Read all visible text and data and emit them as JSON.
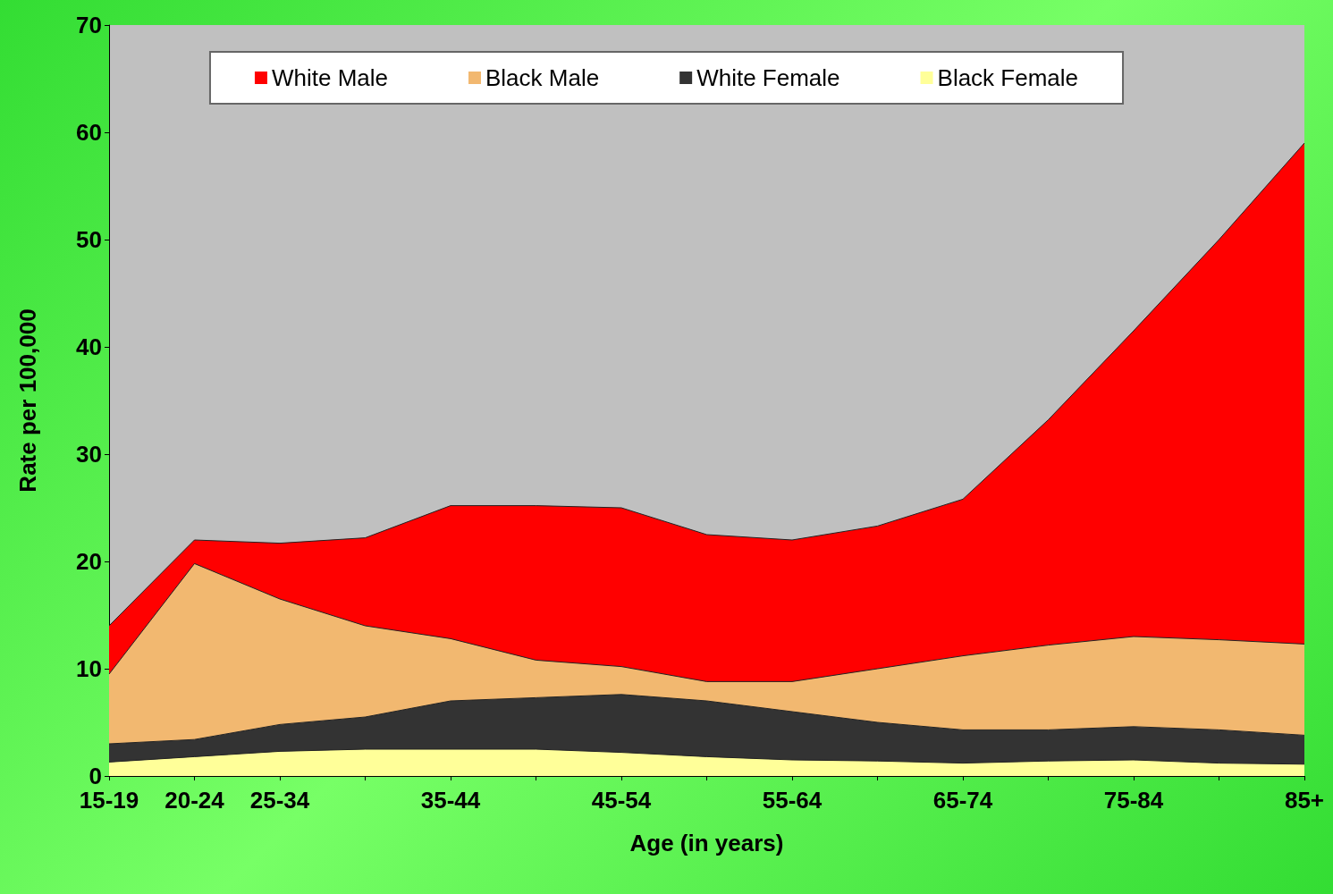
{
  "chart_data": {
    "type": "area",
    "stacked": true,
    "xlabel": "Age (in years)",
    "ylabel": "Rate per 100,000",
    "categories": [
      "15-19",
      "20-24",
      "25-34",
      null,
      "35-44",
      null,
      "45-54",
      null,
      "55-64",
      null,
      "65-74",
      null,
      "75-84",
      null,
      "85+"
    ],
    "series": [
      {
        "name": "Black Female",
        "color": "#ffff99",
        "values": [
          1.3,
          1.8,
          2.3,
          2.5,
          2.5,
          2.5,
          2.2,
          1.8,
          1.5,
          1.4,
          1.2,
          1.4,
          1.5,
          1.2,
          1.1
        ]
      },
      {
        "name": "White Female",
        "color": "#333333",
        "values": [
          1.7,
          1.6,
          2.5,
          3.0,
          4.5,
          4.8,
          5.4,
          5.2,
          4.5,
          3.6,
          3.1,
          2.9,
          3.1,
          3.1,
          2.7
        ]
      },
      {
        "name": "Black Male",
        "color": "#f2b870",
        "values": [
          6.5,
          16.4,
          11.7,
          8.5,
          5.8,
          3.5,
          2.6,
          1.8,
          2.8,
          5.0,
          6.9,
          7.9,
          8.4,
          8.4,
          8.5
        ]
      },
      {
        "name": "White Male",
        "color": "#ff0000",
        "values": [
          4.5,
          2.2,
          5.2,
          8.2,
          12.4,
          14.4,
          14.8,
          13.7,
          13.2,
          13.3,
          14.6,
          21.0,
          28.5,
          37.3,
          46.7
        ]
      }
    ],
    "ylim": [
      0,
      70
    ],
    "yticks": [
      0,
      10,
      20,
      30,
      40,
      50,
      60,
      70
    ],
    "grid": false,
    "legend": "top",
    "marker": "none"
  }
}
